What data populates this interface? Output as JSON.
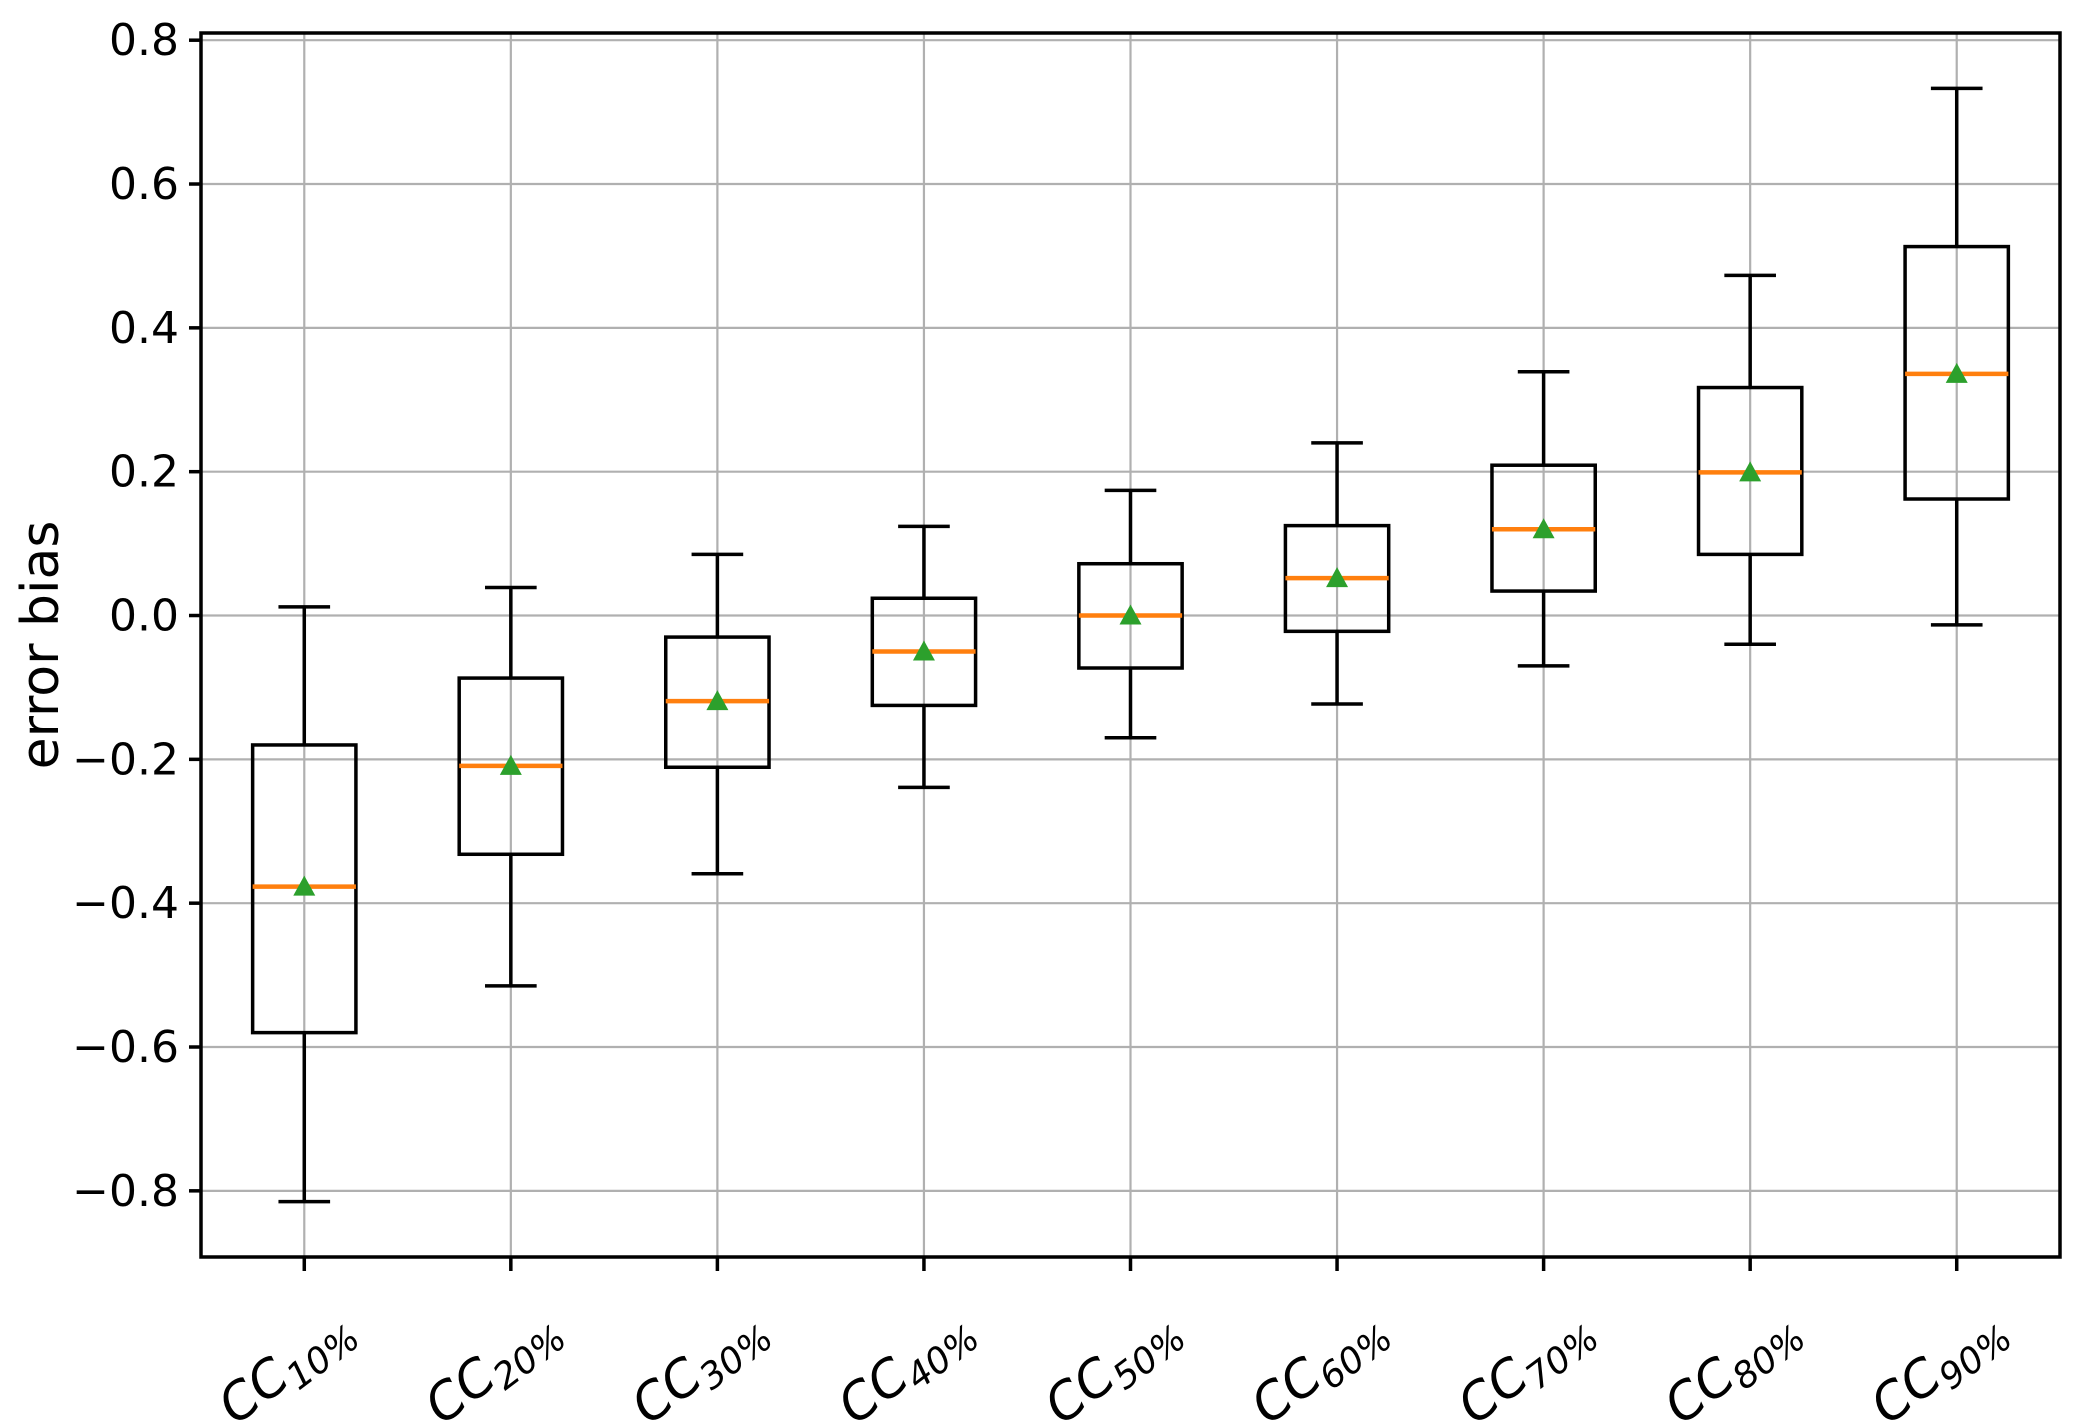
{
  "chart_data": {
    "type": "boxplot",
    "title": "",
    "xlabel": "",
    "ylabel": "error bias",
    "ylim": [
      -0.892,
      0.81
    ],
    "grid": true,
    "legend": "none",
    "ytick_values": [
      0.8,
      0.6,
      0.4,
      0.2,
      0.0,
      -0.2,
      -0.4,
      -0.6,
      -0.8
    ],
    "ytick_labels": [
      "0.8",
      "0.6",
      "0.4",
      "0.2",
      "0.0",
      "−0.2",
      "−0.4",
      "−0.6",
      "−0.8"
    ],
    "colors": {
      "box_line": "#000000",
      "median_line": "#ff7f0e",
      "mean_marker": "#2ca02c",
      "gridline": "#b0b0b0",
      "axis_frame": "#000000",
      "background": "#ffffff"
    },
    "categories": [
      {
        "main": "CC",
        "sub": "10%"
      },
      {
        "main": "CC",
        "sub": "20%"
      },
      {
        "main": "CC",
        "sub": "30%"
      },
      {
        "main": "CC",
        "sub": "40%"
      },
      {
        "main": "CC",
        "sub": "50%"
      },
      {
        "main": "CC",
        "sub": "60%"
      },
      {
        "main": "CC",
        "sub": "70%"
      },
      {
        "main": "CC",
        "sub": "80%"
      },
      {
        "main": "CC",
        "sub": "90%"
      }
    ],
    "series": [
      {
        "label": "CC10%",
        "whisker_low": -0.815,
        "q1": -0.58,
        "median": -0.377,
        "mean": -0.377,
        "q3": -0.18,
        "whisker_high": 0.012
      },
      {
        "label": "CC20%",
        "whisker_low": -0.515,
        "q1": -0.332,
        "median": -0.209,
        "mean": -0.209,
        "q3": -0.087,
        "whisker_high": 0.039
      },
      {
        "label": "CC30%",
        "whisker_low": -0.359,
        "q1": -0.211,
        "median": -0.119,
        "mean": -0.119,
        "q3": -0.03,
        "whisker_high": 0.085
      },
      {
        "label": "CC40%",
        "whisker_low": -0.239,
        "q1": -0.125,
        "median": -0.05,
        "mean": -0.05,
        "q3": 0.024,
        "whisker_high": 0.124
      },
      {
        "label": "CC50%",
        "whisker_low": -0.17,
        "q1": -0.073,
        "median": 0.0,
        "mean": 0.0,
        "q3": 0.072,
        "whisker_high": 0.174
      },
      {
        "label": "CC60%",
        "whisker_low": -0.123,
        "q1": -0.022,
        "median": 0.052,
        "mean": 0.052,
        "q3": 0.125,
        "whisker_high": 0.24
      },
      {
        "label": "CC70%",
        "whisker_low": -0.07,
        "q1": 0.034,
        "median": 0.12,
        "mean": 0.12,
        "q3": 0.209,
        "whisker_high": 0.339
      },
      {
        "label": "CC80%",
        "whisker_low": -0.04,
        "q1": 0.085,
        "median": 0.199,
        "mean": 0.199,
        "q3": 0.317,
        "whisker_high": 0.473
      },
      {
        "label": "CC90%",
        "whisker_low": -0.013,
        "q1": 0.162,
        "median": 0.336,
        "mean": 0.336,
        "q3": 0.513,
        "whisker_high": 0.733
      }
    ]
  }
}
